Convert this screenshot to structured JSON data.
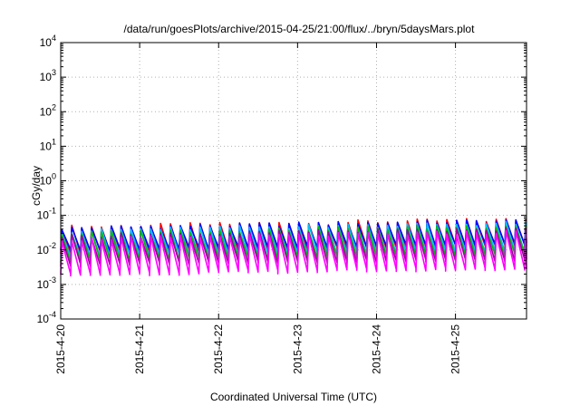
{
  "chart_data": {
    "type": "line",
    "title": "/data/run/goesPlots/archive/2015-04-25/21:00/flux/../bryn/5daysMars.plot",
    "xlabel": "Coordinated Universal Time (UTC)",
    "ylabel": "cGy/day",
    "x_tick_labels": [
      "2015-4-20",
      "2015-4-21",
      "2015-4-22",
      "2015-4-23",
      "2015-4-24",
      "2015-4-25"
    ],
    "xlim_days": [
      0,
      5.9
    ],
    "y_scale": "log",
    "ylim": [
      0.0001,
      10000
    ],
    "y_ticks": [
      {
        "base": "10",
        "exp": "-4"
      },
      {
        "base": "10",
        "exp": "-3"
      },
      {
        "base": "10",
        "exp": "-2"
      },
      {
        "base": "10",
        "exp": "-1"
      },
      {
        "base": "10",
        "exp": "0"
      },
      {
        "base": "10",
        "exp": "1"
      },
      {
        "base": "10",
        "exp": "2"
      },
      {
        "base": "10",
        "exp": "3"
      },
      {
        "base": "10",
        "exp": "4"
      }
    ],
    "grid": true,
    "sawtooth_period_days": 0.125,
    "series": [
      {
        "color": "#ff0000",
        "peak_range": [
          0.045,
          0.075
        ],
        "floor_range": [
          0.008,
          0.013
        ]
      },
      {
        "color": "#0000ff",
        "peak_range": [
          0.042,
          0.07
        ],
        "floor_range": [
          0.009,
          0.014
        ]
      },
      {
        "color": "#00c0ff",
        "peak_range": [
          0.035,
          0.06
        ],
        "floor_range": [
          0.006,
          0.009
        ]
      },
      {
        "color": "#00c000",
        "peak_range": [
          0.03,
          0.05
        ],
        "floor_range": [
          0.0045,
          0.007
        ]
      },
      {
        "color": "#a000a0",
        "peak_range": [
          0.025,
          0.04
        ],
        "floor_range": [
          0.0035,
          0.005
        ]
      },
      {
        "color": "#ff00ff",
        "peak_range": [
          0.02,
          0.033
        ],
        "floor_range": [
          0.0018,
          0.0028
        ]
      }
    ]
  }
}
